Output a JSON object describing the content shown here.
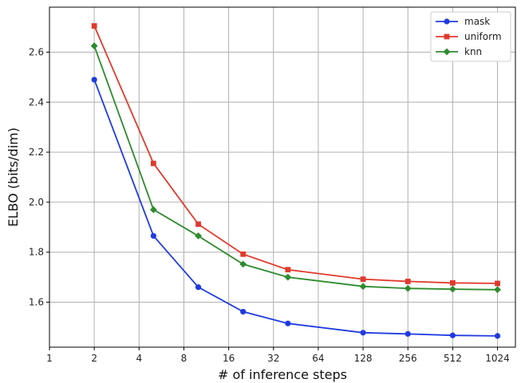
{
  "chart_data": {
    "type": "line",
    "title": "",
    "xlabel": "# of inference steps",
    "ylabel": "ELBO (bits/dim)",
    "x_scale": "log2",
    "xlim": [
      1,
      1024
    ],
    "ylim": [
      1.42,
      2.78
    ],
    "x_ticks": [
      1,
      2,
      4,
      8,
      16,
      32,
      64,
      128,
      256,
      512,
      1024
    ],
    "y_ticks": [
      1.6,
      1.8,
      2.0,
      2.2,
      2.4,
      2.6
    ],
    "grid": true,
    "legend_position": "top-right",
    "series": [
      {
        "name": "mask",
        "color": "#1f3be0",
        "marker": "circle",
        "x": [
          2,
          5,
          10,
          20,
          40,
          128,
          256,
          512,
          1024
        ],
        "values": [
          2.49,
          1.865,
          1.66,
          1.562,
          1.515,
          1.478,
          1.473,
          1.467,
          1.465
        ]
      },
      {
        "name": "uniform",
        "color": "#e03a2c",
        "marker": "square",
        "x": [
          2,
          5,
          10,
          20,
          40,
          128,
          256,
          512,
          1024
        ],
        "values": [
          2.705,
          2.155,
          1.912,
          1.792,
          1.73,
          1.692,
          1.683,
          1.677,
          1.675
        ]
      },
      {
        "name": "knn",
        "color": "#2e8b2e",
        "marker": "diamond",
        "x": [
          2,
          5,
          10,
          20,
          40,
          128,
          256,
          512,
          1024
        ],
        "values": [
          2.625,
          1.97,
          1.865,
          1.752,
          1.7,
          1.663,
          1.655,
          1.652,
          1.65
        ]
      }
    ]
  }
}
